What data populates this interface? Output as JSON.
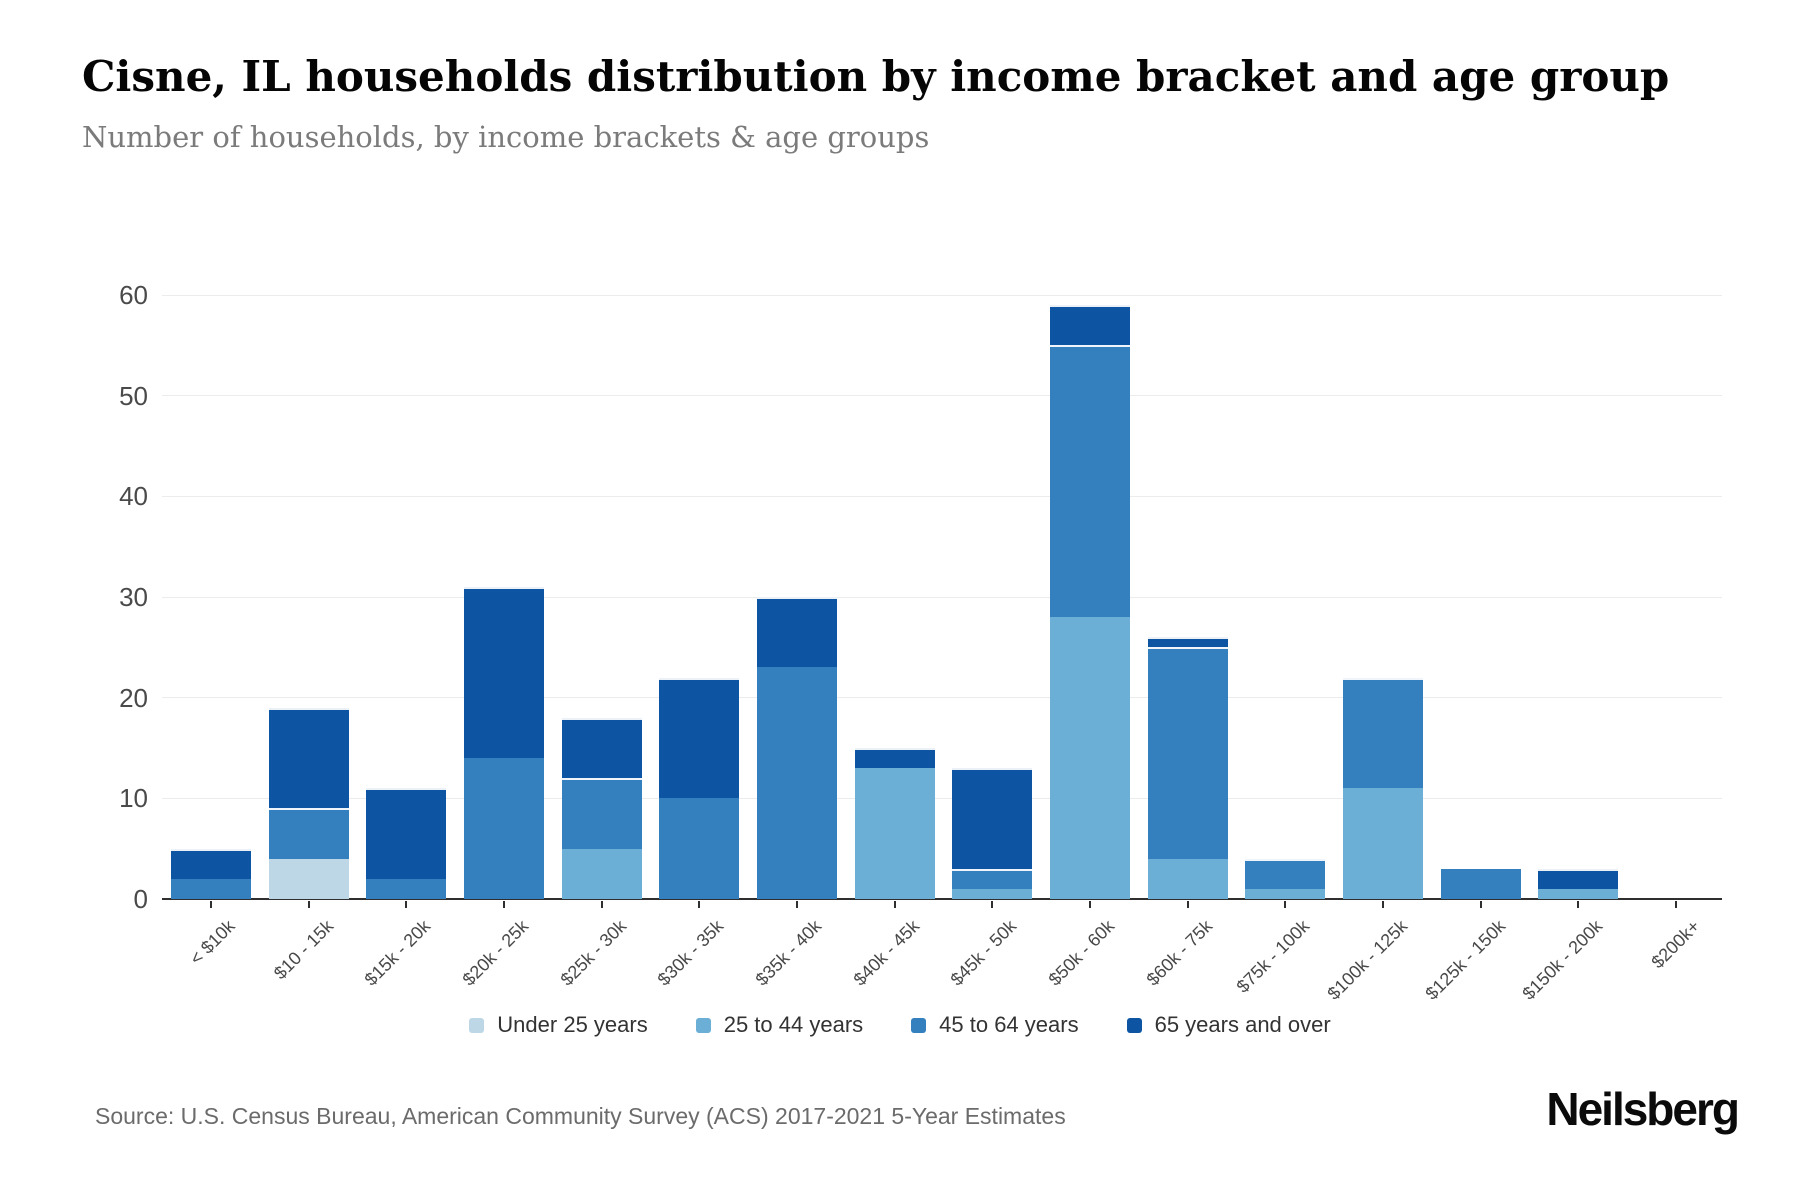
{
  "chart_data": {
    "type": "bar",
    "stacked": true,
    "title": "Cisne, IL households distribution by income bracket and age group",
    "subtitle": "Number of households, by income brackets & age groups",
    "xlabel": "",
    "ylabel": "",
    "ylim": [
      0,
      60
    ],
    "yticks": [
      0,
      10,
      20,
      30,
      40,
      50,
      60
    ],
    "grid": true,
    "legend_position": "bottom",
    "categories": [
      "< $10k",
      "$10 - 15k",
      "$15k - 20k",
      "$20k - 25k",
      "$25k - 30k",
      "$30k - 35k",
      "$35k - 40k",
      "$40k - 45k",
      "$45k - 50k",
      "$50k - 60k",
      "$60k - 75k",
      "$75k - 100k",
      "$100k - 125k",
      "$125k - 150k",
      "$150k - 200k",
      "$200k+"
    ],
    "series": [
      {
        "name": "Under 25 years",
        "color": "#bdd7e7",
        "values": [
          0,
          4,
          0,
          0,
          0,
          0,
          0,
          0,
          0,
          0,
          0,
          0,
          0,
          0,
          0,
          0
        ]
      },
      {
        "name": "25 to 44 years",
        "color": "#6baed6",
        "values": [
          0,
          0,
          0,
          0,
          5,
          0,
          0,
          13,
          1,
          28,
          4,
          1,
          11,
          0,
          1,
          0
        ]
      },
      {
        "name": "45 to 64 years",
        "color": "#347fbe",
        "values": [
          2,
          5,
          2,
          14,
          7,
          10,
          23,
          0,
          2,
          27,
          21,
          3,
          11,
          3,
          0,
          0
        ]
      },
      {
        "name": "65 years and over",
        "color": "#0d55a3",
        "values": [
          3,
          10,
          9,
          17,
          6,
          12,
          7,
          2,
          10,
          4,
          1,
          0,
          0,
          0,
          2,
          0
        ]
      }
    ],
    "totals": [
      5,
      19,
      11,
      31,
      18,
      22,
      30,
      15,
      13,
      59,
      26,
      4,
      22,
      3,
      3,
      0
    ]
  },
  "footer": {
    "source": "Source: U.S. Census Bureau, American Community Survey (ACS) 2017-2021 5-Year Estimates",
    "brand": "Neilsberg"
  }
}
